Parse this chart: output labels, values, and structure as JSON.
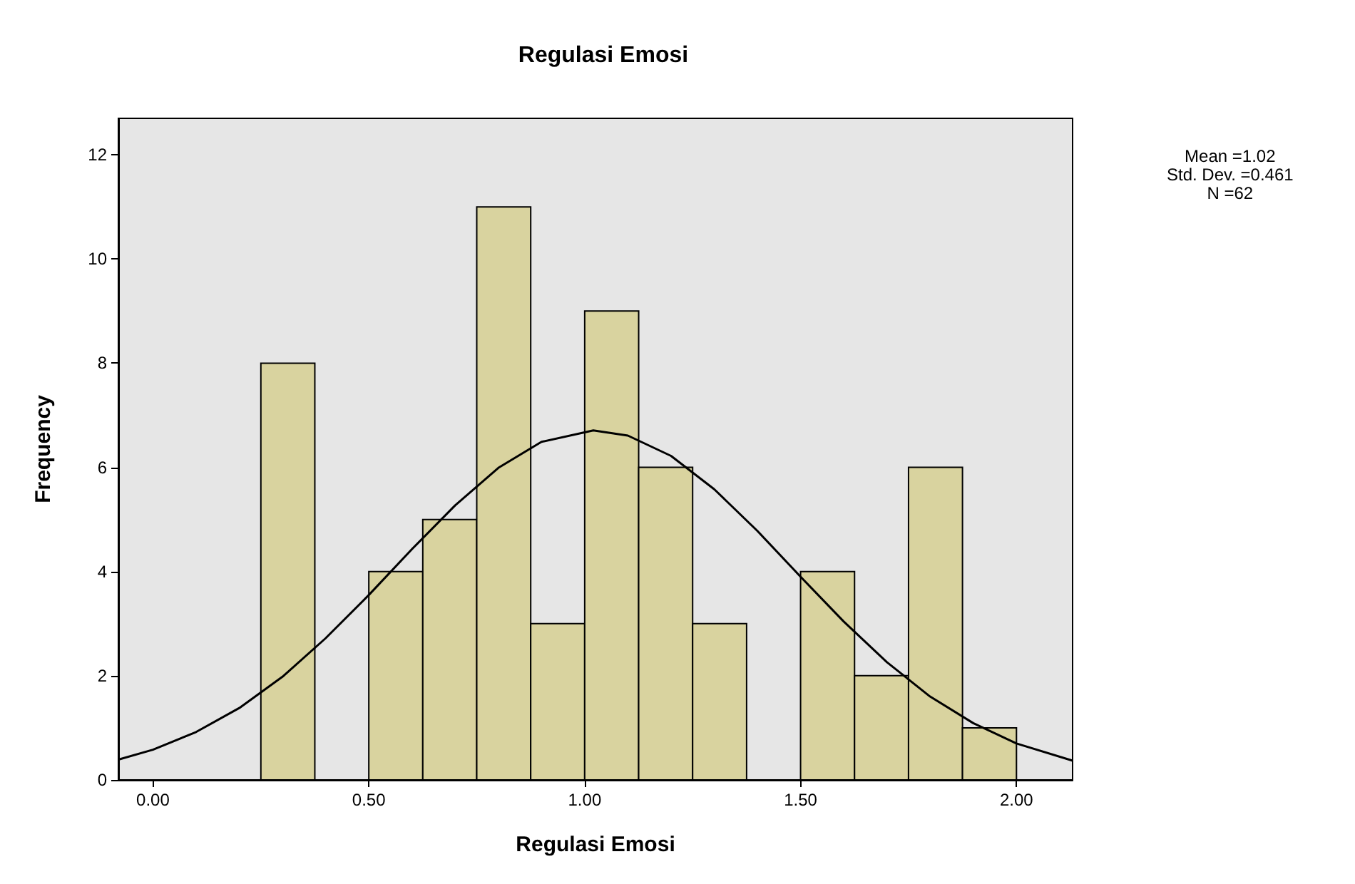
{
  "chart_data": {
    "type": "histogram",
    "title": "Regulasi Emosi",
    "xlabel": "Regulasi Emosi",
    "ylabel": "Frequency",
    "bins": [
      0.25,
      0.375,
      0.5,
      0.625,
      0.75,
      0.875,
      1.0,
      1.125,
      1.25,
      1.375,
      1.5,
      1.625,
      1.75,
      1.875,
      2.0
    ],
    "values": [
      8,
      0,
      4,
      5,
      11,
      3,
      9,
      6,
      3,
      0,
      4,
      2,
      6,
      1
    ],
    "color": "#d9d39f",
    "series": [
      {
        "type": "line",
        "color": "#000000",
        "marker": "none",
        "x": [
          -0.08,
          0.0,
          0.1,
          0.2,
          0.3,
          0.4,
          0.5,
          0.6,
          0.7,
          0.8,
          0.9,
          1.02,
          1.1,
          1.2,
          1.3,
          1.4,
          1.5,
          1.6,
          1.7,
          1.8,
          1.9,
          2.0,
          2.13
        ],
        "values": [
          0.39,
          0.58,
          0.92,
          1.38,
          1.98,
          2.72,
          3.55,
          4.43,
          5.27,
          5.99,
          6.49,
          6.71,
          6.61,
          6.22,
          5.58,
          4.78,
          3.9,
          3.04,
          2.26,
          1.6,
          1.09,
          0.7,
          0.37
        ]
      }
    ],
    "xlim": [
      -0.08,
      2.13
    ],
    "xticks": [
      {
        "value": 0,
        "label": "0.00"
      },
      {
        "value": 0.5,
        "label": "0.50"
      },
      {
        "value": 1,
        "label": "1.00"
      },
      {
        "value": 1.5,
        "label": "1.50"
      },
      {
        "value": 2,
        "label": "2.00"
      }
    ],
    "ylim": [
      0,
      12.7
    ],
    "yticks": [
      0,
      2,
      4,
      6,
      8,
      10,
      12
    ],
    "grid": false,
    "annotations": [
      "Mean =1.02",
      "Std. Dev. =0.461",
      "N =62"
    ]
  }
}
